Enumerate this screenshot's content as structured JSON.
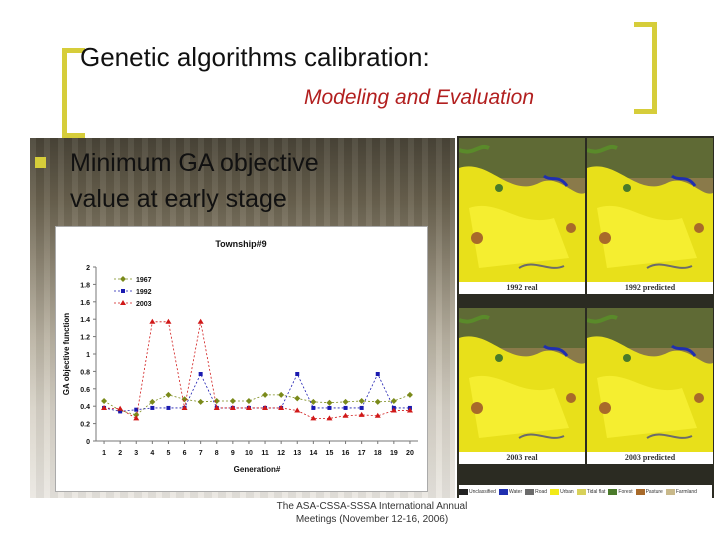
{
  "slide": {
    "title": "Genetic algorithms calibration:",
    "subtitle": "Modeling and Evaluation",
    "bullet_line1": "Minimum GA objective",
    "bullet_line2": "value at early stage",
    "footer_line1": "The ASA-CSSA-SSSA International Annual",
    "footer_line2": "Meetings (November 12-16, 2006)"
  },
  "maps": {
    "labels": [
      "1992 real",
      "1992 predicted",
      "2003 real",
      "2003 predicted"
    ],
    "legend": [
      {
        "name": "Unclassified",
        "color": "#222222"
      },
      {
        "name": "Water",
        "color": "#1f2fb0"
      },
      {
        "name": "Road",
        "color": "#6b6b6b"
      },
      {
        "name": "Urban",
        "color": "#f2ea18"
      },
      {
        "name": "Tidal flat",
        "color": "#d8d15a"
      },
      {
        "name": "Forest",
        "color": "#4a7a2a"
      },
      {
        "name": "Pasture",
        "color": "#a86a2a"
      },
      {
        "name": "Farmland",
        "color": "#c9b98a"
      }
    ]
  },
  "chart_data": {
    "type": "line",
    "title": "Township#9",
    "xlabel": "Generation#",
    "ylabel": "GA objective function",
    "categories": [
      "1",
      "2",
      "3",
      "4",
      "5",
      "6",
      "7",
      "8",
      "9",
      "10",
      "11",
      "12",
      "13",
      "14",
      "15",
      "16",
      "17",
      "18",
      "19",
      "20"
    ],
    "ylim": [
      0,
      2
    ],
    "yticks": [
      "0",
      "0.2",
      "0.4",
      "0.6",
      "0.8",
      "1",
      "1.2",
      "1.4",
      "1.6",
      "1.8",
      "2"
    ],
    "series": [
      {
        "name": "1967",
        "color": "#7a8a1a",
        "marker": "diamond",
        "values": [
          0.46,
          0.35,
          0.3,
          0.45,
          0.53,
          0.48,
          0.45,
          0.46,
          0.46,
          0.46,
          0.53,
          0.53,
          0.49,
          0.45,
          0.44,
          0.45,
          0.46,
          0.45,
          0.46,
          0.53
        ]
      },
      {
        "name": "1992",
        "color": "#1a1ab0",
        "marker": "square",
        "values": [
          0.38,
          0.34,
          0.36,
          0.38,
          0.38,
          0.38,
          0.77,
          0.38,
          0.38,
          0.38,
          0.38,
          0.38,
          0.77,
          0.38,
          0.38,
          0.38,
          0.38,
          0.77,
          0.38,
          0.38
        ]
      },
      {
        "name": "2003",
        "color": "#d01818",
        "marker": "triangle",
        "values": [
          0.38,
          0.37,
          0.26,
          1.37,
          1.37,
          0.38,
          1.37,
          0.38,
          0.38,
          0.38,
          0.38,
          0.38,
          0.35,
          0.26,
          0.26,
          0.29,
          0.3,
          0.29,
          0.35,
          0.35
        ]
      }
    ]
  }
}
